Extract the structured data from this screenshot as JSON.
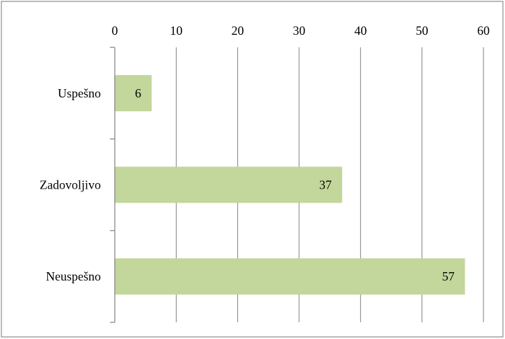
{
  "chart_data": {
    "type": "bar",
    "orientation": "horizontal",
    "categories": [
      "Uspešno",
      "Zadovoljivo",
      "Neuspešno"
    ],
    "values": [
      6,
      37,
      57
    ],
    "data_labels": [
      "6",
      "37",
      "57"
    ],
    "xlim": [
      0,
      60
    ],
    "x_ticks": [
      0,
      10,
      20,
      30,
      40,
      50,
      60
    ],
    "x_tick_labels": [
      "0",
      "10",
      "20",
      "30",
      "40",
      "50",
      "60"
    ],
    "x_axis_position": "top",
    "grid": true,
    "legend": "none",
    "bar_color": "#c3d69b",
    "grid_color": "#7f7f7f"
  }
}
